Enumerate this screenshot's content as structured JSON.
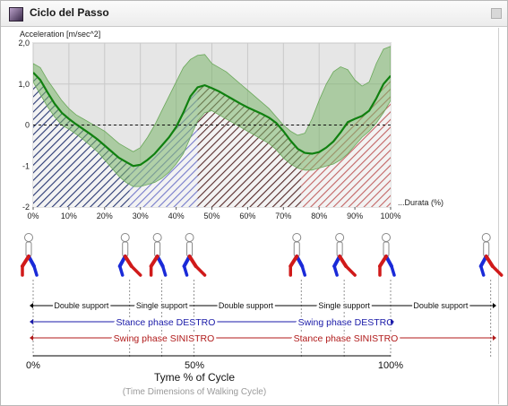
{
  "window": {
    "title": "Ciclo del Passo",
    "icon": "app-icon",
    "resize_icon": "resize-grip-icon"
  },
  "chart_data": {
    "type": "area",
    "ylabel": "Acceleration [m/sec^2]",
    "xlabel": "...Durata (%)",
    "ylim": [
      -2,
      2
    ],
    "xlim": [
      0,
      100
    ],
    "y_ticks": [
      "2,0",
      "1,0",
      "0",
      "-1",
      "-2"
    ],
    "y_tick_values": [
      2,
      1,
      0,
      -1,
      -2
    ],
    "x_ticks": [
      "0%",
      "10%",
      "20%",
      "30%",
      "40%",
      "50%",
      "60%",
      "70%",
      "80%",
      "90%",
      "100%"
    ],
    "x_tick_values": [
      0,
      10,
      20,
      30,
      40,
      50,
      60,
      70,
      80,
      90,
      100
    ],
    "grid": true,
    "zero_line": "dashed",
    "x": [
      0,
      2,
      4,
      6,
      8,
      10,
      12,
      14,
      16,
      18,
      20,
      22,
      24,
      26,
      28,
      30,
      32,
      34,
      36,
      38,
      40,
      42,
      44,
      46,
      48,
      50,
      52,
      54,
      56,
      58,
      60,
      62,
      64,
      66,
      68,
      70,
      72,
      74,
      76,
      78,
      80,
      82,
      84,
      86,
      88,
      90,
      92,
      94,
      96,
      98,
      100
    ],
    "series": [
      {
        "name": "",
        "color": "#108010",
        "values": [
          1.28,
          1.1,
          0.8,
          0.52,
          0.3,
          0.15,
          0.02,
          -0.1,
          -0.22,
          -0.35,
          -0.5,
          -0.65,
          -0.8,
          -0.9,
          -1.0,
          -0.97,
          -0.85,
          -0.7,
          -0.5,
          -0.3,
          -0.05,
          0.3,
          0.7,
          0.92,
          0.97,
          0.9,
          0.82,
          0.72,
          0.62,
          0.52,
          0.43,
          0.35,
          0.27,
          0.18,
          0.05,
          -0.15,
          -0.38,
          -0.58,
          -0.68,
          -0.7,
          -0.66,
          -0.55,
          -0.4,
          -0.18,
          0.07,
          0.15,
          0.22,
          0.35,
          0.65,
          1.0,
          1.2
        ]
      },
      {
        "name": "",
        "band": true,
        "color": "#7ab46a",
        "upper": [
          1.5,
          1.4,
          1.1,
          0.85,
          0.6,
          0.4,
          0.25,
          0.15,
          0.05,
          -0.05,
          -0.15,
          -0.3,
          -0.45,
          -0.55,
          -0.65,
          -0.55,
          -0.3,
          0.0,
          0.35,
          0.7,
          1.05,
          1.4,
          1.6,
          1.7,
          1.72,
          1.5,
          1.4,
          1.3,
          1.15,
          1.0,
          0.85,
          0.7,
          0.55,
          0.4,
          0.2,
          0.0,
          -0.15,
          -0.25,
          -0.2,
          0.15,
          0.6,
          1.0,
          1.3,
          1.42,
          1.35,
          1.1,
          0.95,
          1.05,
          1.5,
          1.85,
          1.92
        ],
        "lower": [
          1.05,
          0.75,
          0.45,
          0.2,
          0.0,
          -0.1,
          -0.22,
          -0.35,
          -0.5,
          -0.65,
          -0.85,
          -1.05,
          -1.25,
          -1.4,
          -1.5,
          -1.5,
          -1.45,
          -1.4,
          -1.3,
          -1.15,
          -0.95,
          -0.7,
          -0.3,
          0.1,
          0.3,
          0.35,
          0.25,
          0.15,
          0.05,
          -0.05,
          -0.15,
          -0.25,
          -0.35,
          -0.45,
          -0.6,
          -0.8,
          -0.95,
          -1.05,
          -1.1,
          -1.1,
          -1.05,
          -1.0,
          -0.95,
          -0.85,
          -0.7,
          -0.5,
          -0.3,
          -0.15,
          0.05,
          0.3,
          0.6
        ]
      }
    ],
    "phase_regions": [
      {
        "from": 0,
        "to": 27,
        "color": "#1a2a6a"
      },
      {
        "from": 27,
        "to": 46,
        "color": "#6a70c8"
      },
      {
        "from": 46,
        "to": 75,
        "color": "#4a1a1a"
      },
      {
        "from": 75,
        "to": 100,
        "color": "#c05a5a"
      }
    ]
  },
  "gait": {
    "figure_positions": [
      0,
      27,
      36,
      45,
      75,
      87,
      100,
      128
    ],
    "phases": [
      {
        "label": "Double support",
        "from": 0,
        "to": 27
      },
      {
        "label": "Single support",
        "from": 27,
        "to": 45
      },
      {
        "label": "Double support",
        "from": 45,
        "to": 74
      },
      {
        "label": "Single support",
        "from": 74,
        "to": 100
      },
      {
        "label": "Double support",
        "from": 100,
        "to": 128
      }
    ],
    "stance_destro": "Stance phase DESTRO",
    "swing_destro": "Swing phase DESTRO",
    "swing_sinistro": "Swing phase SINISTRO",
    "stance_sinistro": "Stance phase SINISTRO",
    "axis_ticks": [
      "0%",
      "50%",
      "100%"
    ],
    "axis_title": "Tyme % of Cycle",
    "axis_subtitle": "(Time Dimensions of Walking Cycle)",
    "colors": {
      "destro": "#1a1aa8",
      "sinistro": "#b01a1a",
      "right_leg": "#1a2ad8",
      "left_leg": "#d01a1a"
    }
  }
}
